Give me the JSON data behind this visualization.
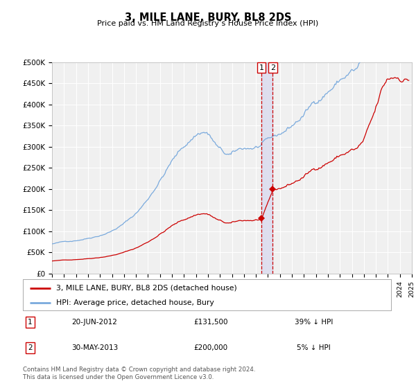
{
  "title": "3, MILE LANE, BURY, BL8 2DS",
  "subtitle": "Price paid vs. HM Land Registry’s House Price Index (HPI)",
  "legend_label_red": "3, MILE LANE, BURY, BL8 2DS (detached house)",
  "legend_label_blue": "HPI: Average price, detached house, Bury",
  "footnote": "Contains HM Land Registry data © Crown copyright and database right 2024.\nThis data is licensed under the Open Government Licence v3.0.",
  "sale1_date": "20-JUN-2012",
  "sale1_price": 131500,
  "sale1_label": "1",
  "sale1_year": 2012.46,
  "sale1_pct": "39% ↓ HPI",
  "sale2_date": "30-MAY-2013",
  "sale2_price": 200000,
  "sale2_label": "2",
  "sale2_year": 2013.41,
  "sale2_pct": "5% ↓ HPI",
  "ylim": [
    0,
    500000
  ],
  "yticks": [
    0,
    50000,
    100000,
    150000,
    200000,
    250000,
    300000,
    350000,
    400000,
    450000,
    500000
  ],
  "ytick_labels": [
    "£0",
    "£50K",
    "£100K",
    "£150K",
    "£200K",
    "£250K",
    "£300K",
    "£350K",
    "£400K",
    "£450K",
    "£500K"
  ],
  "color_red": "#cc0000",
  "color_blue": "#7aaadd",
  "color_dashed": "#cc0000",
  "background_plot": "#f0f0f0",
  "background_fig": "#ffffff",
  "grid_color": "#ffffff",
  "highlight_color": "#ddddee"
}
